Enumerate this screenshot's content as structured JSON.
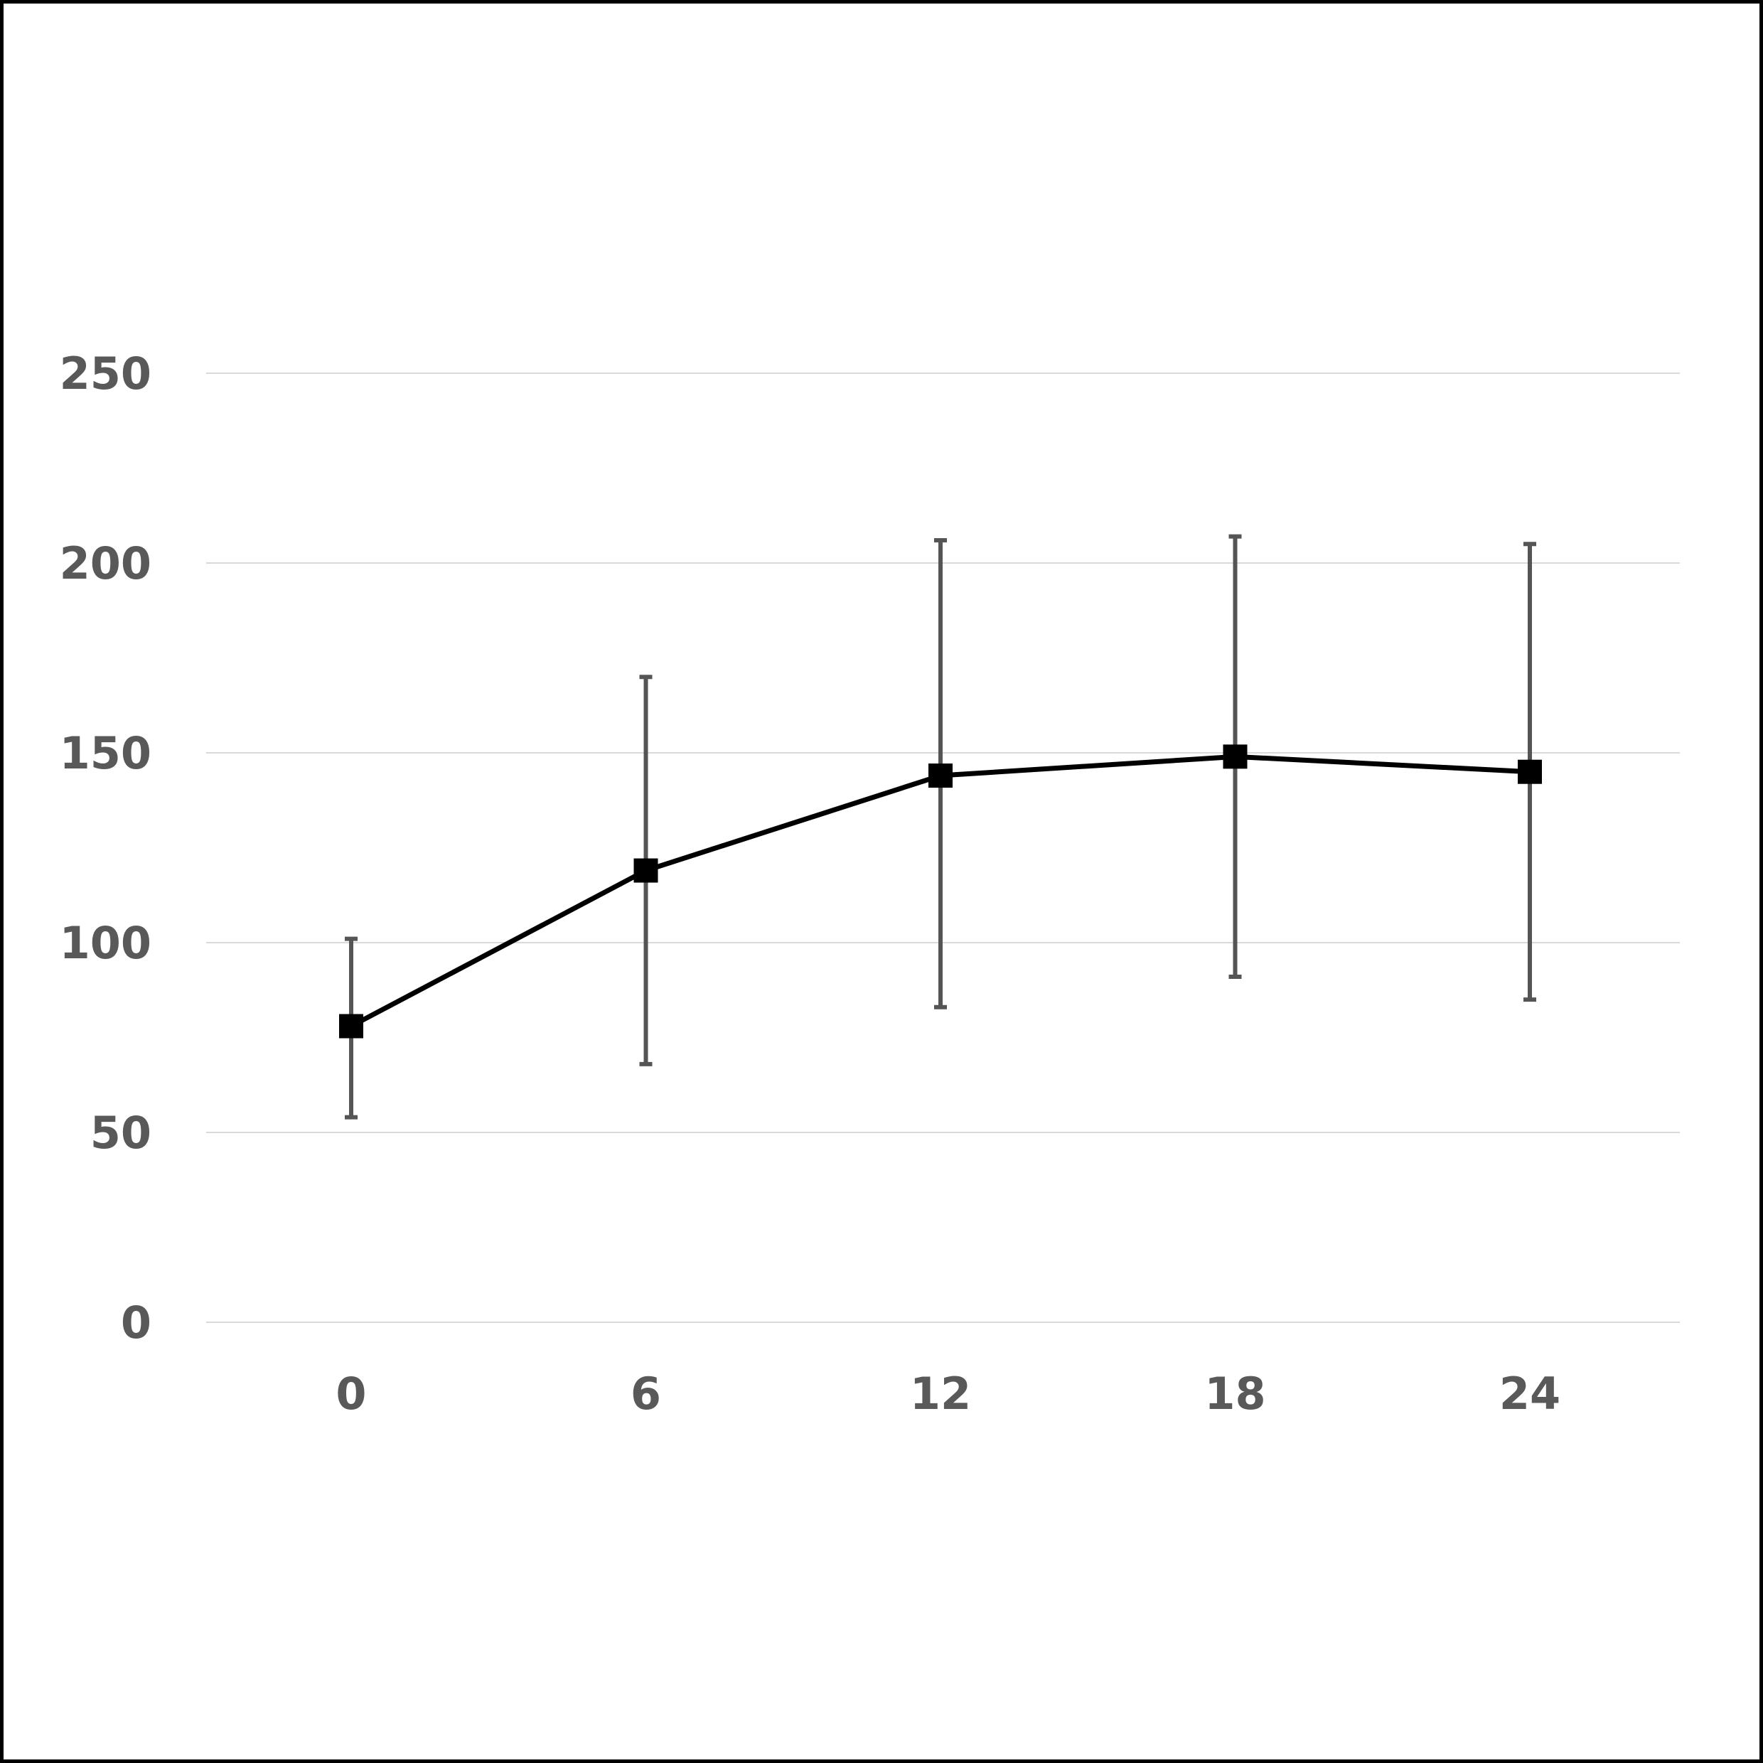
{
  "chart_data": {
    "type": "line",
    "title": "",
    "xlabel": "",
    "ylabel": "",
    "categories": [
      "0",
      "6",
      "12",
      "18",
      "24"
    ],
    "series": [
      {
        "values": [
          78,
          119,
          144,
          149,
          145
        ],
        "error_low": [
          54,
          68,
          83,
          91,
          85
        ],
        "error_high": [
          101,
          170,
          206,
          207,
          205
        ]
      }
    ],
    "ylim": [
      0,
      250
    ],
    "yticks": [
      "0",
      "50",
      "100",
      "150",
      "200",
      "250"
    ],
    "grid": true,
    "legend": "none",
    "colors": {
      "line": "#000000",
      "marker": "#000000",
      "error_bar": "#555555",
      "grid": "#d9d9d9",
      "tick_text": "#595959"
    }
  }
}
